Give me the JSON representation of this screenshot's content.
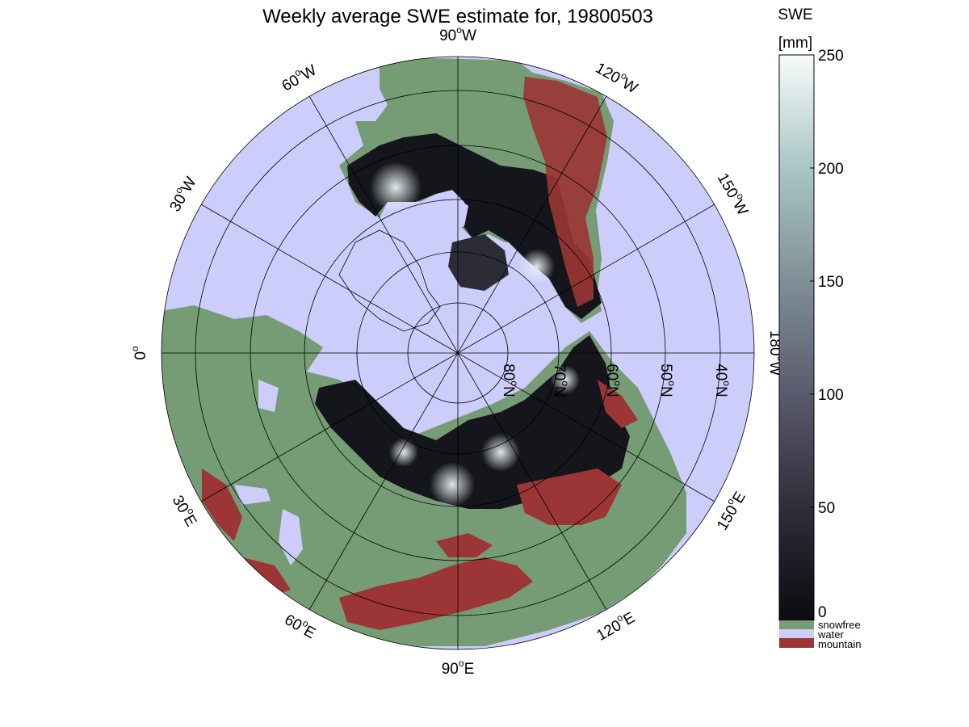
{
  "title": "Weekly average SWE estimate for, 19800503",
  "colorbar": {
    "label_line1": "SWE",
    "label_line2": "[mm]",
    "ticks": [
      "0",
      "50",
      "100",
      "150",
      "200",
      "250"
    ],
    "range": [
      0,
      250
    ],
    "gradient_colors": [
      "#0b0b10",
      "#2f2e3a",
      "#5a5a6e",
      "#7f8f97",
      "#a9c6c4",
      "#f6fbfb"
    ],
    "categories": [
      {
        "label": "snowfree",
        "color": "#759c74"
      },
      {
        "label": "water",
        "color": "#cdcdfb"
      },
      {
        "label": "mountain",
        "color": "#9c3535"
      }
    ]
  },
  "map": {
    "projection": "north-polar-stereographic",
    "colors": {
      "ocean": "#cdcdfb",
      "land": "#759c74",
      "mountain": "#9c3535",
      "snow_deep": "#0d0d12"
    },
    "longitude_labels": [
      {
        "base": "90",
        "hemi": "W",
        "deg": 90
      },
      {
        "base": "120",
        "hemi": "W",
        "deg": 120
      },
      {
        "base": "150",
        "hemi": "W",
        "deg": 150
      },
      {
        "base": "180",
        "hemi": "W",
        "deg": 180
      },
      {
        "base": "150",
        "hemi": "E",
        "deg": 150
      },
      {
        "base": "120",
        "hemi": "E",
        "deg": 120
      },
      {
        "base": "90",
        "hemi": "E",
        "deg": 90
      },
      {
        "base": "60",
        "hemi": "E",
        "deg": 60
      },
      {
        "base": "30",
        "hemi": "E",
        "deg": 30
      },
      {
        "base": "0",
        "hemi": "",
        "deg": 0
      },
      {
        "base": "30",
        "hemi": "W",
        "deg": 30
      },
      {
        "base": "60",
        "hemi": "W",
        "deg": 60
      }
    ],
    "latitude_labels": [
      {
        "base": "80",
        "hemi": "N"
      },
      {
        "base": "70",
        "hemi": "N"
      },
      {
        "base": "60",
        "hemi": "N"
      },
      {
        "base": "50",
        "hemi": "N"
      },
      {
        "base": "40",
        "hemi": "N"
      }
    ]
  }
}
